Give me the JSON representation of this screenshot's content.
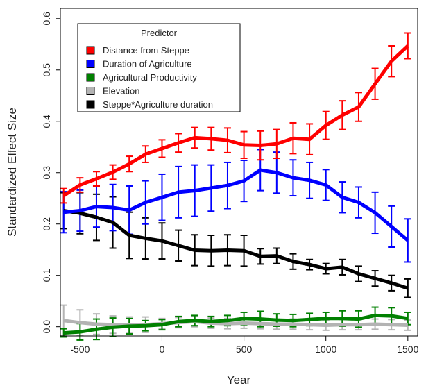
{
  "chart_data": {
    "type": "line",
    "xlabel": "Year",
    "ylabel": "Standardized Effect Size",
    "xlim": [
      -620,
      1560
    ],
    "ylim": [
      -0.018,
      0.62
    ],
    "x_ticks": [
      -500,
      0,
      500,
      1000,
      1500
    ],
    "x_tick_labels": [
      "-500",
      "0",
      "500",
      "1000",
      "1500"
    ],
    "y_ticks": [
      0.0,
      0.1,
      0.2,
      0.3,
      0.4,
      0.5,
      0.6
    ],
    "y_tick_labels": [
      "0.0",
      "0.1",
      "0.2",
      "0.3",
      "0.4",
      "0.5",
      "0.6"
    ],
    "grid": false,
    "legend": {
      "title": "Predictor",
      "placement": "top-left"
    },
    "x": [
      -600,
      -500,
      -400,
      -300,
      -200,
      -100,
      0,
      100,
      200,
      300,
      400,
      500,
      600,
      700,
      800,
      900,
      1000,
      1100,
      1200,
      1300,
      1400,
      1500
    ],
    "series": [
      {
        "name": "Distance from Steppe",
        "color": "#ff0000",
        "values": [
          0.255,
          0.276,
          0.288,
          0.301,
          0.317,
          0.336,
          0.347,
          0.358,
          0.368,
          0.366,
          0.363,
          0.354,
          0.353,
          0.356,
          0.367,
          0.365,
          0.392,
          0.412,
          0.428,
          0.473,
          0.517,
          0.547
        ],
        "err": [
          0.014,
          0.014,
          0.014,
          0.014,
          0.015,
          0.016,
          0.017,
          0.018,
          0.02,
          0.022,
          0.024,
          0.026,
          0.028,
          0.028,
          0.03,
          0.03,
          0.027,
          0.028,
          0.028,
          0.03,
          0.03,
          0.025
        ]
      },
      {
        "name": "Duration of Agriculture",
        "color": "#0000ff",
        "values": [
          0.223,
          0.226,
          0.234,
          0.232,
          0.227,
          0.242,
          0.252,
          0.262,
          0.265,
          0.27,
          0.275,
          0.284,
          0.305,
          0.3,
          0.29,
          0.285,
          0.276,
          0.252,
          0.242,
          0.222,
          0.195,
          0.168
        ],
        "err": [
          0.04,
          0.04,
          0.04,
          0.045,
          0.047,
          0.042,
          0.045,
          0.05,
          0.05,
          0.045,
          0.045,
          0.04,
          0.04,
          0.04,
          0.035,
          0.035,
          0.03,
          0.03,
          0.03,
          0.04,
          0.04,
          0.042
        ]
      },
      {
        "name": "Agricultural Productivity",
        "color": "#008000",
        "values": [
          -0.012,
          -0.01,
          -0.005,
          -0.001,
          0.001,
          0.002,
          0.004,
          0.01,
          0.012,
          0.01,
          0.012,
          0.016,
          0.015,
          0.013,
          0.012,
          0.014,
          0.016,
          0.016,
          0.015,
          0.022,
          0.021,
          0.016
        ],
        "err": [
          0.008,
          0.016,
          0.02,
          0.018,
          0.015,
          0.01,
          0.01,
          0.01,
          0.01,
          0.01,
          0.01,
          0.012,
          0.015,
          0.012,
          0.012,
          0.012,
          0.012,
          0.015,
          0.016,
          0.016,
          0.016,
          0.012
        ]
      },
      {
        "name": "Elevation",
        "color": "#b3b3b3",
        "values": [
          0.012,
          0.008,
          0.005,
          0.004,
          0.003,
          0.004,
          0.006,
          0.008,
          0.01,
          0.007,
          0.006,
          0.007,
          0.006,
          0.005,
          0.005,
          0.004,
          0.003,
          0.004,
          0.004,
          0.005,
          0.004,
          0.003
        ],
        "err": [
          0.03,
          0.025,
          0.02,
          0.017,
          0.016,
          0.015,
          0.01,
          0.01,
          0.01,
          0.01,
          0.01,
          0.01,
          0.01,
          0.01,
          0.01,
          0.01,
          0.01,
          0.01,
          0.01,
          0.01,
          0.01,
          0.01
        ]
      },
      {
        "name": "Steppe*Agriculture duration",
        "color": "#000000",
        "values": [
          0.226,
          0.221,
          0.213,
          0.203,
          0.178,
          0.172,
          0.167,
          0.158,
          0.149,
          0.148,
          0.149,
          0.148,
          0.137,
          0.138,
          0.127,
          0.121,
          0.113,
          0.116,
          0.103,
          0.094,
          0.085,
          0.075
        ],
        "err": [
          0.035,
          0.04,
          0.045,
          0.05,
          0.045,
          0.04,
          0.035,
          0.03,
          0.03,
          0.03,
          0.03,
          0.03,
          0.015,
          0.015,
          0.015,
          0.01,
          0.01,
          0.015,
          0.015,
          0.015,
          0.015,
          0.018
        ]
      }
    ]
  }
}
